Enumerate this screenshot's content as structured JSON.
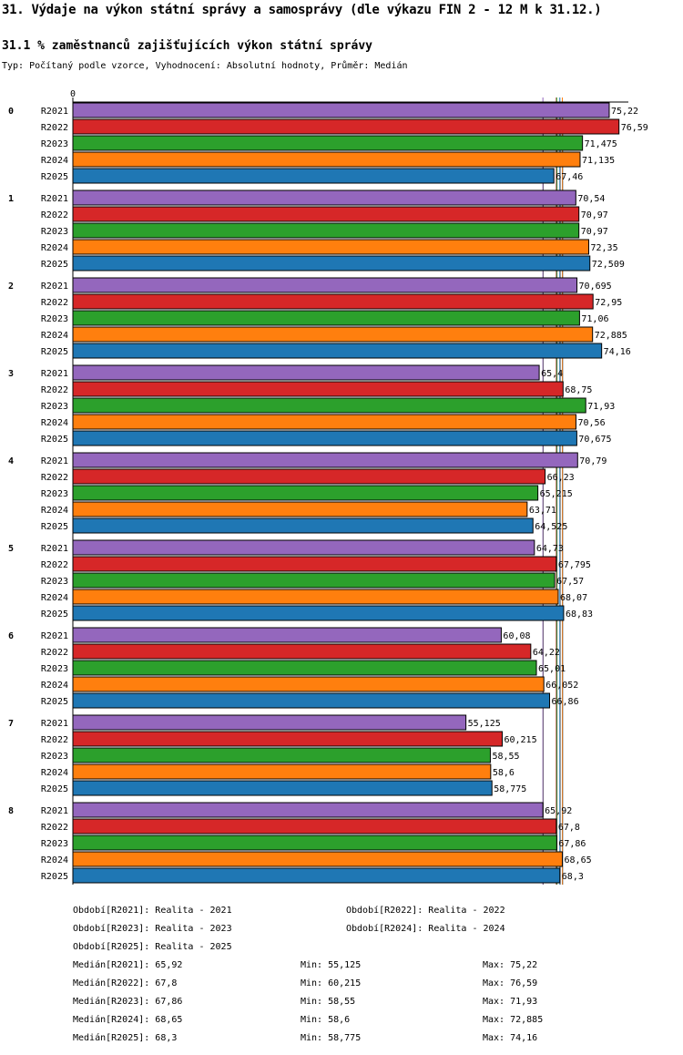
{
  "title": "31. Výdaje na výkon státní správy a samosprávy (dle výkazu FIN 2 - 12 M k 31.12.)",
  "subtitle": "31.1 % zaměstnanců zajišťujících výkon státní správy",
  "info": "Typ: Počítaný podle vzorce, Vyhodnocení: Absolutní hodnoty, Průměr: Medián",
  "chart_data": {
    "type": "bar",
    "orientation": "horizontal",
    "x_tick_label": "0",
    "categories": [
      "0",
      "1",
      "2",
      "3",
      "4",
      "5",
      "6",
      "7",
      "8"
    ],
    "series": [
      {
        "name": "R2021",
        "color": "#9467bd",
        "values": [
          75.22,
          70.54,
          70.695,
          65.4,
          70.79,
          64.73,
          60.08,
          55.125,
          65.92
        ],
        "labels": [
          "75,22",
          "70,54",
          "70,695",
          "65,4",
          "70,79",
          "64,73",
          "60,08",
          "55,125",
          "65,92"
        ]
      },
      {
        "name": "R2022",
        "color": "#d62728",
        "values": [
          76.59,
          70.97,
          72.95,
          68.75,
          66.23,
          67.795,
          64.22,
          60.215,
          67.8
        ],
        "labels": [
          "76,59",
          "70,97",
          "72,95",
          "68,75",
          "66,23",
          "67,795",
          "64,22",
          "60,215",
          "67,8"
        ]
      },
      {
        "name": "R2023",
        "color": "#2ca02c",
        "values": [
          71.475,
          70.97,
          71.06,
          71.93,
          65.215,
          67.57,
          65.01,
          58.55,
          67.86
        ],
        "labels": [
          "71,475",
          "70,97",
          "71,06",
          "71,93",
          "65,215",
          "67,57",
          "65,01",
          "58,55",
          "67,86"
        ]
      },
      {
        "name": "R2024",
        "color": "#ff7f0e",
        "values": [
          71.135,
          72.35,
          72.885,
          70.56,
          63.71,
          68.07,
          66.052,
          58.6,
          68.65
        ],
        "labels": [
          "71,135",
          "72,35",
          "72,885",
          "70,56",
          "63,71",
          "68,07",
          "66,052",
          "58,6",
          "68,65"
        ]
      },
      {
        "name": "R2025",
        "color": "#1f77b4",
        "values": [
          67.46,
          72.509,
          74.16,
          70.675,
          64.525,
          68.83,
          66.86,
          58.775,
          68.3
        ],
        "labels": [
          "67,46",
          "72,509",
          "74,16",
          "70,675",
          "64,525",
          "68,83",
          "66,86",
          "58,775",
          "68,3"
        ]
      }
    ],
    "medians": [
      65.92,
      67.8,
      67.86,
      68.65,
      68.3
    ]
  },
  "legend": {
    "periods": [
      "Období[R2021]: Realita - 2021",
      "Období[R2022]: Realita - 2022",
      "Období[R2023]: Realita - 2023",
      "Období[R2024]: Realita - 2024",
      "Období[R2025]: Realita - 2025"
    ],
    "stats": [
      [
        "Medián[R2021]: 65,92",
        "Min: 55,125",
        "Max: 75,22"
      ],
      [
        "Medián[R2022]: 67,8",
        "Min: 60,215",
        "Max: 76,59"
      ],
      [
        "Medián[R2023]: 67,86",
        "Min: 58,55",
        "Max: 71,93"
      ],
      [
        "Medián[R2024]: 68,65",
        "Min: 58,6",
        "Max: 72,885"
      ],
      [
        "Medián[R2025]: 68,3",
        "Min: 58,775",
        "Max: 74,16"
      ]
    ]
  }
}
